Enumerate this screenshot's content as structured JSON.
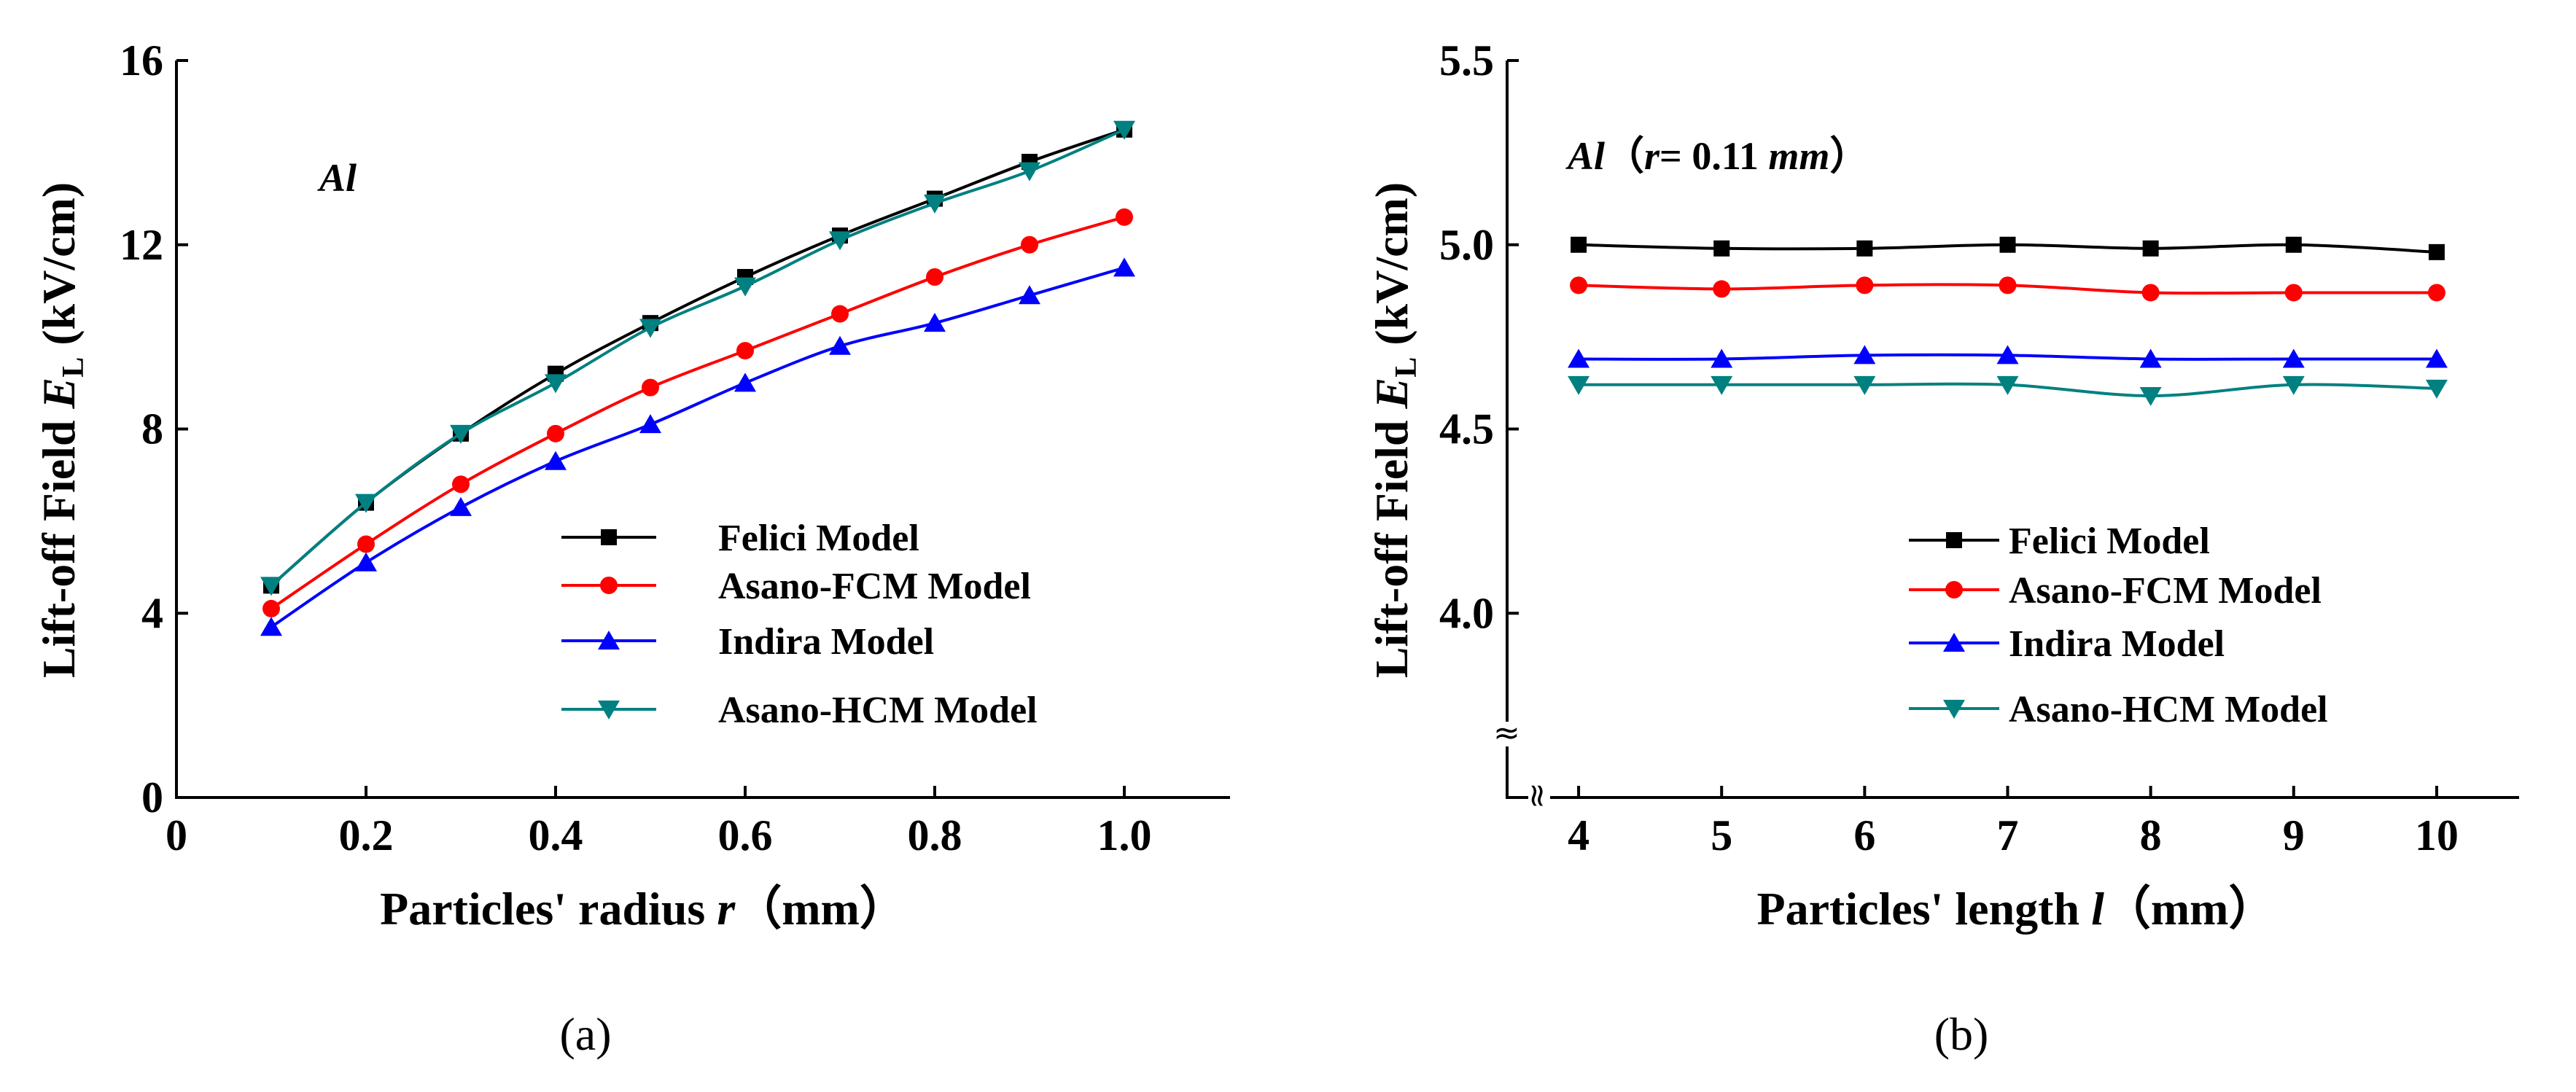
{
  "chart_data": [
    {
      "type": "line",
      "panel_id": "a",
      "caption": "(a)",
      "annotation": "Al",
      "xlabel": "Particles' radius r（mm）",
      "xlabel_parts": {
        "pre": "Particles' radius ",
        "var": "r",
        "post": "（mm）"
      },
      "ylabel": "Lift-off Field EL (kV/cm)",
      "ylabel_parts": {
        "pre": "Lift-off Field ",
        "var": "E",
        "sub": "L",
        "post": " (kV/cm)"
      },
      "xlim": [
        0,
        1.1
      ],
      "ylim": [
        0,
        16
      ],
      "xticks": [
        0,
        0.2,
        0.4,
        0.6,
        0.8,
        1.0
      ],
      "xtick_labels": [
        "0",
        "0.2",
        "0.4",
        "0.6",
        "0.8",
        "1.0"
      ],
      "yticks": [
        0,
        4,
        8,
        12,
        16
      ],
      "ytick_labels": [
        "0",
        "4",
        "8",
        "12",
        "16"
      ],
      "legend_position": "lower-right",
      "series": [
        {
          "name": "Felici Model",
          "color": "#000000",
          "marker": "square",
          "x": [
            0.1,
            0.2,
            0.3,
            0.4,
            0.5,
            0.6,
            0.7,
            0.8,
            0.9,
            1.0
          ],
          "values": [
            4.6,
            6.4,
            7.9,
            9.2,
            10.3,
            11.3,
            12.2,
            13.0,
            13.8,
            14.5
          ]
        },
        {
          "name": "Asano-FCM Model",
          "color": "#ff0000",
          "marker": "circle",
          "x": [
            0.1,
            0.2,
            0.3,
            0.4,
            0.5,
            0.6,
            0.7,
            0.8,
            0.9,
            1.0
          ],
          "values": [
            4.1,
            5.5,
            6.8,
            7.9,
            8.9,
            9.7,
            10.5,
            11.3,
            12.0,
            12.6
          ]
        },
        {
          "name": "Indira Model",
          "color": "#0000ff",
          "marker": "triangle-up",
          "x": [
            0.1,
            0.2,
            0.3,
            0.4,
            0.5,
            0.6,
            0.7,
            0.8,
            0.9,
            1.0
          ],
          "values": [
            3.7,
            5.1,
            6.3,
            7.3,
            8.1,
            9.0,
            9.8,
            10.3,
            10.9,
            11.5
          ]
        },
        {
          "name": "Asano-HCM Model",
          "color": "#008080",
          "marker": "triangle-down",
          "x": [
            0.1,
            0.2,
            0.3,
            0.4,
            0.5,
            0.6,
            0.7,
            0.8,
            0.9,
            1.0
          ],
          "values": [
            4.6,
            6.4,
            7.9,
            9.0,
            10.2,
            11.1,
            12.1,
            12.9,
            13.6,
            14.5
          ]
        }
      ]
    },
    {
      "type": "line",
      "panel_id": "b",
      "caption": "(b)",
      "annotation": "Al（r= 0.11 mm）",
      "annotation_parts": {
        "a": "Al",
        "b": "（",
        "c": "r",
        "d": "= 0.11 ",
        "e": "mm",
        "f": "）"
      },
      "xlabel": "Particles' length l（mm）",
      "xlabel_parts": {
        "pre": "Particles' length ",
        "var": "l",
        "post": "（mm）"
      },
      "ylabel": "Lift-off Field EL (kV/cm)",
      "ylabel_parts": {
        "pre": "Lift-off Field ",
        "var": "E",
        "sub": "L",
        "post": " (kV/cm)"
      },
      "xlim": [
        3.5,
        10.5
      ],
      "ylim": [
        3.5,
        5.5
      ],
      "axis_break": "≈",
      "xticks": [
        4,
        5,
        6,
        7,
        8,
        9,
        10
      ],
      "xtick_labels": [
        "4",
        "5",
        "6",
        "7",
        "8",
        "9",
        "10"
      ],
      "yticks": [
        4.0,
        4.5,
        5.0,
        5.5
      ],
      "ytick_labels": [
        "4.0",
        "4.5",
        "5.0",
        "5.5"
      ],
      "legend_position": "lower-right",
      "series": [
        {
          "name": "Felici Model",
          "color": "#000000",
          "marker": "square",
          "x": [
            4,
            5,
            6,
            7,
            8,
            9,
            10
          ],
          "values": [
            5.0,
            4.99,
            4.99,
            5.0,
            4.99,
            5.0,
            4.98
          ]
        },
        {
          "name": "Asano-FCM Model",
          "color": "#ff0000",
          "marker": "circle",
          "x": [
            4,
            5,
            6,
            7,
            8,
            9,
            10
          ],
          "values": [
            4.89,
            4.88,
            4.89,
            4.89,
            4.87,
            4.87,
            4.87
          ]
        },
        {
          "name": "Indira Model",
          "color": "#0000ff",
          "marker": "triangle-up",
          "x": [
            4,
            5,
            6,
            7,
            8,
            9,
            10
          ],
          "values": [
            4.69,
            4.69,
            4.7,
            4.7,
            4.69,
            4.69,
            4.69
          ]
        },
        {
          "name": "Asano-HCM Model",
          "color": "#008080",
          "marker": "triangle-down",
          "x": [
            4,
            5,
            6,
            7,
            8,
            9,
            10
          ],
          "values": [
            4.62,
            4.62,
            4.62,
            4.62,
            4.59,
            4.62,
            4.61
          ]
        }
      ]
    }
  ]
}
